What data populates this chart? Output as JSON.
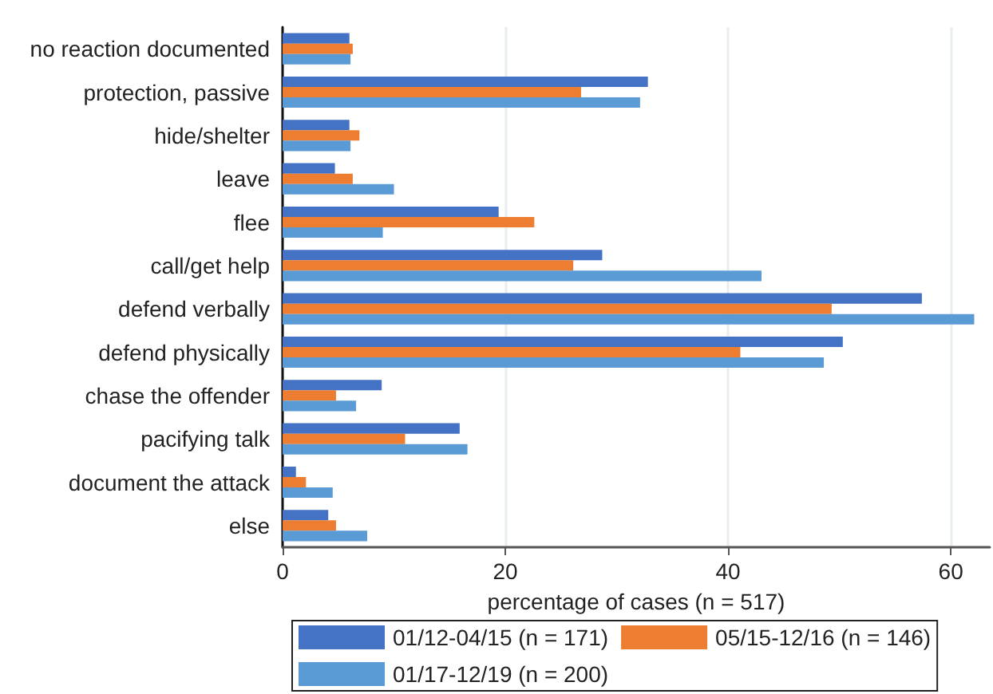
{
  "chart_data": {
    "type": "bar",
    "orientation": "horizontal",
    "xlabel": "percentage of cases (n = 517)",
    "categories": [
      "no reaction documented",
      "protection, passive",
      "hide/shelter",
      "leave",
      "flee",
      "call/get help",
      "defend verbally",
      "defend physically",
      "chase the offender",
      "pacifying talk",
      "document the attack",
      "else"
    ],
    "series": [
      {
        "name": "01/12-04/15 (n = 171)",
        "color": "#4472c4",
        "values": [
          6.0,
          32.8,
          6.0,
          4.7,
          19.4,
          28.7,
          57.4,
          50.3,
          8.9,
          15.9,
          1.2,
          4.1
        ]
      },
      {
        "name": "05/15-12/16 (n = 146)",
        "color": "#ed7d31",
        "values": [
          6.3,
          26.8,
          6.9,
          6.3,
          22.6,
          26.1,
          49.3,
          41.1,
          4.8,
          11.0,
          2.1,
          4.8
        ]
      },
      {
        "name": "01/17-12/19 (n = 200)",
        "color": "#5b9bd5",
        "values": [
          6.1,
          32.1,
          6.1,
          10.0,
          9.0,
          43.0,
          62.1,
          48.6,
          6.6,
          16.6,
          4.5,
          7.6
        ]
      }
    ],
    "xlim": [
      0,
      63.5
    ],
    "xticks": [
      0,
      20,
      40,
      60
    ],
    "grid": "x",
    "legend": "bottom"
  }
}
